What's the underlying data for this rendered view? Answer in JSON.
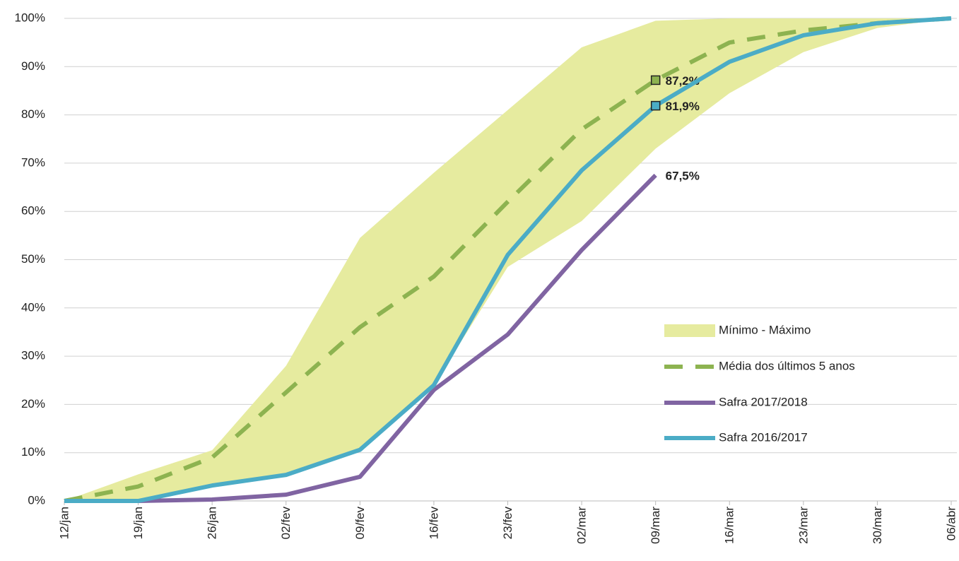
{
  "chart_data": {
    "type": "line",
    "categories": [
      "12/jan",
      "19/jan",
      "26/jan",
      "02/fev",
      "09/fev",
      "16/fev",
      "23/fev",
      "02/mar",
      "09/mar",
      "16/mar",
      "23/mar",
      "30/mar",
      "06/abr"
    ],
    "ylim": [
      0,
      100
    ],
    "yticks": [
      {
        "value": 0,
        "label": "0%"
      },
      {
        "value": 10,
        "label": "10%"
      },
      {
        "value": 20,
        "label": "20%"
      },
      {
        "value": 30,
        "label": "30%"
      },
      {
        "value": 40,
        "label": "40%"
      },
      {
        "value": 50,
        "label": "50%"
      },
      {
        "value": 60,
        "label": "60%"
      },
      {
        "value": 70,
        "label": "70%"
      },
      {
        "value": 80,
        "label": "80%"
      },
      {
        "value": 90,
        "label": "90%"
      },
      {
        "value": 100,
        "label": "100%"
      }
    ],
    "grid": true,
    "legend": "right",
    "band": {
      "name": "Mínimo - Máximo",
      "color": "#e6eb9f",
      "low": [
        0,
        0,
        3.2,
        5.4,
        10.6,
        24,
        48.5,
        58,
        73,
        84.5,
        93,
        98,
        100
      ],
      "high": [
        0,
        5.5,
        10.5,
        28,
        54.5,
        68,
        81,
        94,
        99.5,
        100,
        100,
        100,
        100
      ]
    },
    "series": [
      {
        "name": "Média dos últimos 5 anos",
        "color": "#8db350",
        "dashed": true,
        "values": [
          0,
          3,
          9,
          22.5,
          36,
          46.5,
          62,
          77,
          87.2,
          95,
          97.5,
          99,
          100
        ],
        "value_labels": [
          null,
          null,
          null,
          null,
          null,
          null,
          null,
          null,
          "87,2%",
          null,
          null,
          null,
          null
        ]
      },
      {
        "name": "Safra 2017/2018",
        "color": "#8064a2",
        "dashed": false,
        "values": [
          0,
          0,
          0.3,
          1.3,
          5,
          23,
          34.5,
          52,
          67.5,
          null,
          null,
          null,
          null
        ],
        "value_labels": [
          null,
          null,
          null,
          null,
          null,
          null,
          null,
          null,
          "67,5%",
          null,
          null,
          null,
          null
        ]
      },
      {
        "name": "Safra 2016/2017",
        "color": "#4bacc6",
        "dashed": false,
        "values": [
          0,
          0,
          3.2,
          5.4,
          10.6,
          24,
          51,
          68.5,
          81.9,
          91,
          96.5,
          99,
          100
        ],
        "value_labels": [
          null,
          null,
          null,
          null,
          null,
          null,
          null,
          null,
          "81,9%",
          null,
          null,
          null,
          null
        ]
      }
    ]
  }
}
